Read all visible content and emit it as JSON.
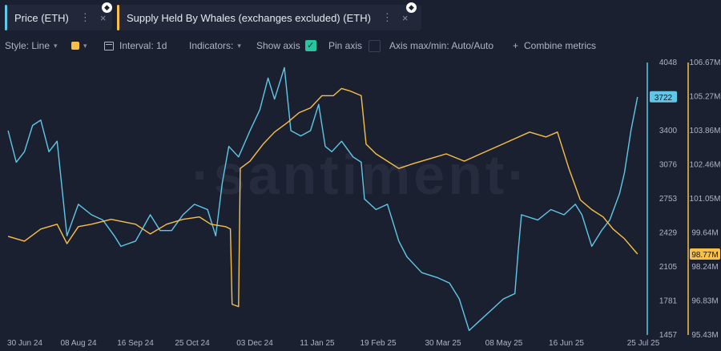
{
  "tabs": [
    {
      "label": "Price (ETH)",
      "color": "#5fc8e8"
    },
    {
      "label": "Supply Held By Whales (exchanges excluded) (ETH)",
      "color": "#f8c046"
    }
  ],
  "toolbar": {
    "style": "Style: Line",
    "interval": "Interval: 1d",
    "indicators": "Indicators:",
    "show_axis": "Show axis",
    "pin_axis": "Pin axis",
    "axis_minmax": "Axis max/min: Auto/Auto",
    "combine": "Combine metrics"
  },
  "watermark": "·santiment·",
  "icons": {
    "more": "⋮",
    "close": "×",
    "chevron": "▾",
    "check": "✓",
    "plus": "+",
    "eth": "◆"
  },
  "chart_data": {
    "type": "line",
    "x_labels": [
      "30 Jun 24",
      "08 Aug 24",
      "16 Sep 24",
      "25 Oct 24",
      "03 Dec 24",
      "11 Jan 25",
      "19 Feb 25",
      "30 Mar 25",
      "08 May 25",
      "16 Jun 25",
      "25 Jul 25"
    ],
    "price_axis": {
      "ticks": [
        1457,
        1781,
        2105,
        2429,
        2753,
        3076,
        3400,
        3722,
        4048
      ],
      "range": [
        1457,
        4048
      ]
    },
    "whales_axis": {
      "ticks": [
        "95.43M",
        "96.83M",
        "98.24M",
        "99.64M",
        "101.05M",
        "102.46M",
        "103.86M",
        "105.27M",
        "106.67M"
      ],
      "range": [
        95.43,
        106.67
      ]
    },
    "price_current": "3722",
    "whales_current": "98.77M",
    "grid": false,
    "series": [
      {
        "name": "Price (ETH)",
        "color": "#5fc8e8",
        "points": [
          [
            "2024-06-30",
            3400
          ],
          [
            "2024-07-05",
            3100
          ],
          [
            "2024-07-10",
            3200
          ],
          [
            "2024-07-15",
            3450
          ],
          [
            "2024-07-20",
            3500
          ],
          [
            "2024-07-25",
            3200
          ],
          [
            "2024-07-30",
            3300
          ],
          [
            "2024-08-05",
            2400
          ],
          [
            "2024-08-12",
            2700
          ],
          [
            "2024-08-20",
            2600
          ],
          [
            "2024-08-27",
            2550
          ],
          [
            "2024-09-03",
            2400
          ],
          [
            "2024-09-07",
            2300
          ],
          [
            "2024-09-16",
            2350
          ],
          [
            "2024-09-25",
            2600
          ],
          [
            "2024-10-01",
            2450
          ],
          [
            "2024-10-08",
            2450
          ],
          [
            "2024-10-15",
            2600
          ],
          [
            "2024-10-22",
            2700
          ],
          [
            "2024-10-30",
            2650
          ],
          [
            "2024-11-04",
            2400
          ],
          [
            "2024-11-08",
            2900
          ],
          [
            "2024-11-12",
            3250
          ],
          [
            "2024-11-18",
            3150
          ],
          [
            "2024-11-25",
            3400
          ],
          [
            "2024-12-01",
            3600
          ],
          [
            "2024-12-06",
            3900
          ],
          [
            "2024-12-10",
            3700
          ],
          [
            "2024-12-16",
            4000
          ],
          [
            "2024-12-20",
            3400
          ],
          [
            "2024-12-26",
            3350
          ],
          [
            "2025-01-01",
            3400
          ],
          [
            "2025-01-06",
            3650
          ],
          [
            "2025-01-10",
            3250
          ],
          [
            "2025-01-14",
            3200
          ],
          [
            "2025-01-20",
            3300
          ],
          [
            "2025-01-27",
            3150
          ],
          [
            "2025-02-01",
            3100
          ],
          [
            "2025-02-03",
            2750
          ],
          [
            "2025-02-10",
            2650
          ],
          [
            "2025-02-17",
            2700
          ],
          [
            "2025-02-24",
            2350
          ],
          [
            "2025-03-01",
            2200
          ],
          [
            "2025-03-10",
            2050
          ],
          [
            "2025-03-20",
            2000
          ],
          [
            "2025-03-27",
            1950
          ],
          [
            "2025-04-02",
            1800
          ],
          [
            "2025-04-08",
            1500
          ],
          [
            "2025-04-15",
            1600
          ],
          [
            "2025-04-22",
            1700
          ],
          [
            "2025-04-29",
            1800
          ],
          [
            "2025-05-06",
            1850
          ],
          [
            "2025-05-08",
            2250
          ],
          [
            "2025-05-10",
            2600
          ],
          [
            "2025-05-20",
            2550
          ],
          [
            "2025-05-28",
            2650
          ],
          [
            "2025-06-05",
            2600
          ],
          [
            "2025-06-12",
            2700
          ],
          [
            "2025-06-16",
            2600
          ],
          [
            "2025-06-22",
            2300
          ],
          [
            "2025-06-28",
            2450
          ],
          [
            "2025-07-03",
            2550
          ],
          [
            "2025-07-09",
            2800
          ],
          [
            "2025-07-12",
            3000
          ],
          [
            "2025-07-16",
            3400
          ],
          [
            "2025-07-20",
            3720
          ]
        ]
      },
      {
        "name": "Supply Held By Whales (exchanges excluded) (ETH)",
        "color": "#f8c046",
        "points": [
          [
            "2024-06-30",
            99.5
          ],
          [
            "2024-07-10",
            99.3
          ],
          [
            "2024-07-20",
            99.8
          ],
          [
            "2024-07-30",
            100.0
          ],
          [
            "2024-08-05",
            99.2
          ],
          [
            "2024-08-12",
            99.9
          ],
          [
            "2024-08-20",
            100.0
          ],
          [
            "2024-09-01",
            100.2
          ],
          [
            "2024-09-16",
            100.0
          ],
          [
            "2024-09-25",
            99.6
          ],
          [
            "2024-10-05",
            100.0
          ],
          [
            "2024-10-15",
            100.2
          ],
          [
            "2024-10-25",
            100.3
          ],
          [
            "2024-11-01",
            100.0
          ],
          [
            "2024-11-10",
            99.9
          ],
          [
            "2024-11-13",
            99.8
          ],
          [
            "2024-11-14",
            96.7
          ],
          [
            "2024-11-18",
            96.6
          ],
          [
            "2024-11-19",
            102.3
          ],
          [
            "2024-11-25",
            102.6
          ],
          [
            "2024-12-03",
            103.3
          ],
          [
            "2024-12-10",
            103.8
          ],
          [
            "2024-12-18",
            104.2
          ],
          [
            "2024-12-25",
            104.6
          ],
          [
            "2025-01-01",
            104.8
          ],
          [
            "2025-01-08",
            105.3
          ],
          [
            "2025-01-15",
            105.3
          ],
          [
            "2025-01-20",
            105.6
          ],
          [
            "2025-01-25",
            105.5
          ],
          [
            "2025-02-01",
            105.3
          ],
          [
            "2025-02-04",
            103.3
          ],
          [
            "2025-02-10",
            102.9
          ],
          [
            "2025-02-17",
            102.6
          ],
          [
            "2025-02-24",
            102.3
          ],
          [
            "2025-03-05",
            102.5
          ],
          [
            "2025-03-15",
            102.7
          ],
          [
            "2025-03-25",
            102.9
          ],
          [
            "2025-04-05",
            102.6
          ],
          [
            "2025-04-15",
            102.9
          ],
          [
            "2025-04-25",
            103.2
          ],
          [
            "2025-05-05",
            103.5
          ],
          [
            "2025-05-15",
            103.8
          ],
          [
            "2025-05-25",
            103.6
          ],
          [
            "2025-06-01",
            103.8
          ],
          [
            "2025-06-08",
            102.3
          ],
          [
            "2025-06-15",
            101.0
          ],
          [
            "2025-06-22",
            100.6
          ],
          [
            "2025-06-29",
            100.3
          ],
          [
            "2025-07-05",
            99.8
          ],
          [
            "2025-07-12",
            99.4
          ],
          [
            "2025-07-20",
            98.77
          ]
        ]
      }
    ]
  }
}
